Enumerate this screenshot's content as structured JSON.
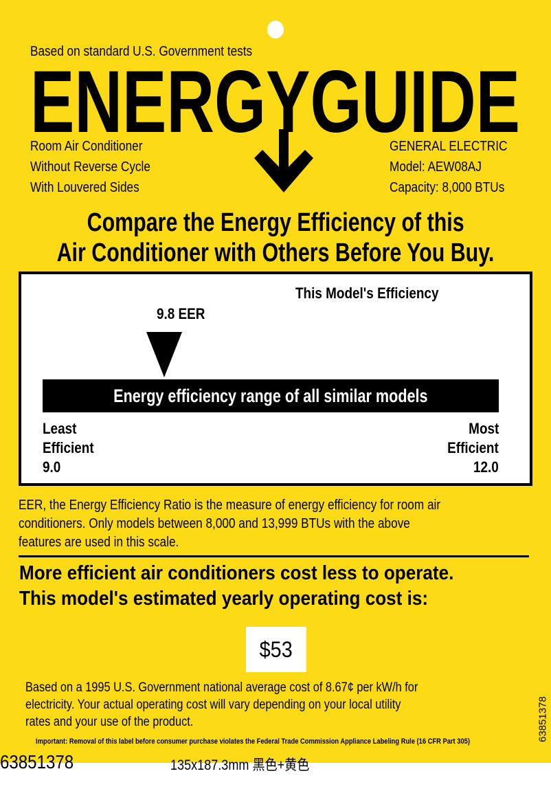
{
  "header": {
    "tests_note": "Based on standard U.S. Government tests",
    "logo_text": "ENERGYGUIDE",
    "product_lines": [
      "Room Air Conditioner",
      "Without Reverse Cycle",
      "With Louvered Sides"
    ],
    "manufacturer": "GENERAL ELECTRIC",
    "model": "Model: AEW08AJ",
    "capacity": "Capacity: 8,000 BTUs"
  },
  "headline": [
    "Compare the Energy Efficiency of this",
    "Air Conditioner with Others Before You Buy."
  ],
  "scale": {
    "title": "This Model's Efficiency",
    "model_value_label": "9.8 EER",
    "model_value": 9.8,
    "min": 9.0,
    "max": 12.0,
    "bar_label": "Energy efficiency range of all similar models",
    "least_label": [
      "Least",
      "Efficient"
    ],
    "least_value": "9.0",
    "most_label": [
      "Most",
      "Efficient"
    ],
    "most_value": "12.0"
  },
  "eer_note": [
    "EER,  the Energy Efficiency Ratio is the measure of energy efficiency for room air",
    "conditioners. Only models between 8,000 and 13,999 BTUs with the above",
    "features are used in this scale."
  ],
  "cost_heading": [
    "More efficient air conditioners cost less to operate.",
    "This model's estimated yearly operating cost is:"
  ],
  "yearly_cost": "$53",
  "cost_note": [
    "Based on a 1995 U.S. Government national average cost of 8.67¢ per kW/h for",
    "electricity. Your actual operating cost will vary depending on your local utility",
    "rates and your use of the product."
  ],
  "important": "Important: Removal of this label before consumer purchase violates the Federal Trade Commission Appliance Labeling Rule (16 CFR Part 305)",
  "side_code": "63851378",
  "footer": {
    "code": "63851378",
    "spec": "135x187.3mm 黑色+黄色"
  },
  "colors": {
    "label_yellow": "#fcdb16",
    "ink": "#000000"
  }
}
